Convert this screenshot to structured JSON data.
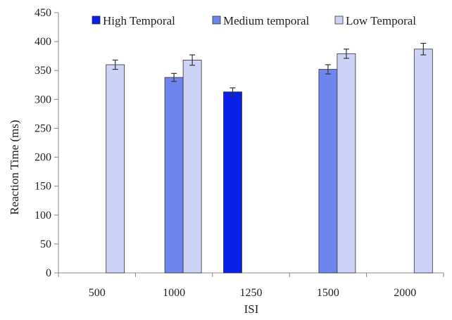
{
  "chart_data": {
    "type": "bar",
    "title": "",
    "xlabel": "ISI",
    "ylabel": "Reaction Time (ms)",
    "ylim": [
      0,
      450
    ],
    "yticks": [
      0,
      50,
      100,
      150,
      200,
      250,
      300,
      350,
      400,
      450
    ],
    "categories": [
      "500",
      "1000",
      "1250",
      "1500",
      "2000"
    ],
    "grid": false,
    "legend_position": "top",
    "error_bars": true,
    "series": [
      {
        "name": "High Temporal",
        "color": "#0a1fe8",
        "values": [
          null,
          null,
          313,
          null,
          null
        ],
        "errors": [
          null,
          null,
          7,
          null,
          null
        ]
      },
      {
        "name": "Medium temporal",
        "color": "#6f85ee",
        "values": [
          null,
          338,
          null,
          352,
          null
        ],
        "errors": [
          null,
          7,
          null,
          8,
          null
        ]
      },
      {
        "name": "Low Temporal",
        "color": "#cdd3f7",
        "values": [
          360,
          368,
          null,
          379,
          387
        ],
        "errors": [
          8,
          9,
          null,
          8,
          10
        ]
      }
    ]
  }
}
